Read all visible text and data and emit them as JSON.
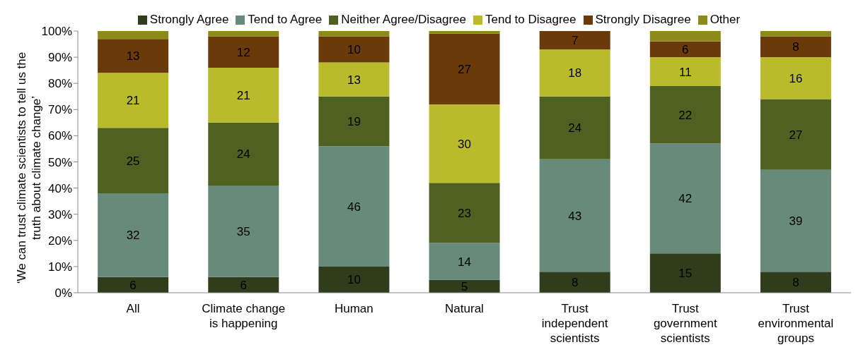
{
  "chart_data": {
    "type": "bar",
    "stacked": true,
    "ylabel": "‘We can trust climate scientists to tell us the truth about climate change’",
    "categories": [
      "All",
      "Climate change is happening",
      "Human",
      "Natural",
      "Trust independent scientists",
      "Trust government scientists",
      "Trust environmental groups"
    ],
    "series": [
      {
        "name": "Strongly Agree",
        "color": "#2f3d1c",
        "values": [
          6,
          6,
          10,
          5,
          8,
          15,
          8
        ],
        "value_labels": [
          "6",
          "6",
          "10",
          "5",
          "8",
          "15",
          "8"
        ]
      },
      {
        "name": "Tend to Agree",
        "color": "#678a7a",
        "values": [
          32,
          35,
          46,
          14,
          43,
          42,
          39
        ],
        "value_labels": [
          "32",
          "35",
          "46",
          "14",
          "43",
          "42",
          "39"
        ]
      },
      {
        "name": "Neither Agree/Disagree",
        "color": "#4f6121",
        "values": [
          25,
          24,
          19,
          23,
          24,
          22,
          27
        ],
        "value_labels": [
          "25",
          "24",
          "19",
          "23",
          "24",
          "22",
          "27"
        ]
      },
      {
        "name": "Tend to Disagree",
        "color": "#b9bb2b",
        "values": [
          21,
          21,
          13,
          30,
          18,
          11,
          16
        ],
        "value_labels": [
          "21",
          "21",
          "13",
          "30",
          "18",
          "11",
          "16"
        ]
      },
      {
        "name": "Strongly Disagree",
        "color": "#6b3a0a",
        "values": [
          13,
          12,
          10,
          27,
          7,
          6,
          8
        ],
        "value_labels": [
          "13",
          "12",
          "10",
          "27",
          "7",
          "6",
          "8"
        ]
      },
      {
        "name": "Other",
        "color": "#8c8a1a",
        "values": [
          3,
          2,
          2,
          1,
          0,
          4,
          2
        ],
        "value_labels": [
          null,
          null,
          null,
          null,
          null,
          null,
          null
        ]
      }
    ],
    "ylim": [
      0,
      100
    ],
    "yticks": [
      {
        "value": 0,
        "label": "0%"
      },
      {
        "value": 10,
        "label": "10%"
      },
      {
        "value": 20,
        "label": "20%"
      },
      {
        "value": 30,
        "label": "30%"
      },
      {
        "value": 40,
        "label": "40%"
      },
      {
        "value": 50,
        "label": "50%"
      },
      {
        "value": 60,
        "label": "60%"
      },
      {
        "value": 70,
        "label": "70%"
      },
      {
        "value": 80,
        "label": "80%"
      },
      {
        "value": 90,
        "label": "90%"
      },
      {
        "value": 100,
        "label": "100%"
      }
    ],
    "grid": false,
    "legend": "top"
  }
}
